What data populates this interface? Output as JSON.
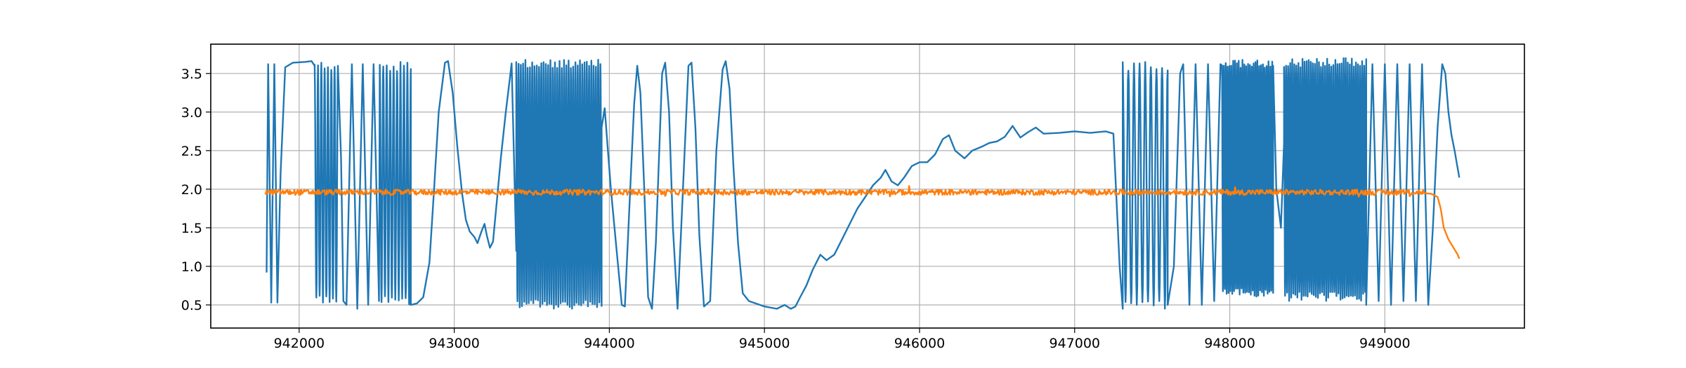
{
  "chart_data": {
    "type": "line",
    "title": "",
    "xlabel": "",
    "ylabel": "",
    "xlim": [
      941430,
      949900
    ],
    "ylim": [
      0.2,
      3.88
    ],
    "grid": true,
    "xticks": [
      942000,
      943000,
      944000,
      945000,
      946000,
      947000,
      948000,
      949000
    ],
    "xtick_labels": [
      "942000",
      "943000",
      "944000",
      "945000",
      "946000",
      "947000",
      "948000",
      "949000"
    ],
    "yticks": [
      0.5,
      1.0,
      1.5,
      2.0,
      2.5,
      3.0,
      3.5
    ],
    "ytick_labels": [
      "0.5",
      "1.0",
      "1.5",
      "2.0",
      "2.5",
      "3.0",
      "3.5"
    ],
    "series": [
      {
        "color": "#1f77b4",
        "segments": [
          {
            "kind": "points",
            "pts": [
              [
                941790,
                0.92
              ],
              [
                941800,
                3.62
              ],
              [
                941820,
                0.53
              ],
              [
                941840,
                3.62
              ],
              [
                941860,
                0.53
              ],
              [
                941880,
                2.2
              ],
              [
                941910,
                3.58
              ],
              [
                941960,
                3.64
              ],
              [
                942040,
                3.65
              ],
              [
                942080,
                3.66
              ],
              [
                942100,
                3.6
              ]
            ]
          },
          {
            "kind": "osc",
            "x0": 942100,
            "x1": 942250,
            "n": 14,
            "lo": 0.5,
            "hi": 3.65
          },
          {
            "kind": "points",
            "pts": [
              [
                942250,
                3.6
              ],
              [
                942270,
                2.4
              ],
              [
                942285,
                0.55
              ],
              [
                942305,
                0.5
              ],
              [
                942340,
                3.62
              ],
              [
                942375,
                0.45
              ],
              [
                942410,
                3.62
              ],
              [
                942445,
                0.5
              ],
              [
                942480,
                3.62
              ],
              [
                942515,
                0.55
              ]
            ]
          },
          {
            "kind": "osc",
            "x0": 942520,
            "x1": 942720,
            "n": 18,
            "lo": 0.5,
            "hi": 3.65
          },
          {
            "kind": "points",
            "pts": [
              [
                942720,
                0.5
              ],
              [
                942760,
                0.52
              ],
              [
                942800,
                0.6
              ],
              [
                942840,
                1.05
              ],
              [
                942870,
                2.0
              ],
              [
                942900,
                3.0
              ],
              [
                942940,
                3.64
              ],
              [
                942960,
                3.66
              ],
              [
                942990,
                3.25
              ],
              [
                943020,
                2.55
              ],
              [
                943050,
                1.95
              ],
              [
                943075,
                1.6
              ],
              [
                943100,
                1.45
              ],
              [
                943130,
                1.38
              ],
              [
                943150,
                1.3
              ],
              [
                943175,
                1.45
              ],
              [
                943195,
                1.55
              ],
              [
                943210,
                1.4
              ],
              [
                943230,
                1.24
              ],
              [
                943250,
                1.32
              ],
              [
                943275,
                1.85
              ],
              [
                943300,
                2.4
              ],
              [
                943330,
                2.96
              ],
              [
                943370,
                3.63
              ],
              [
                943400,
                1.2
              ]
            ]
          },
          {
            "kind": "osc",
            "x0": 943400,
            "x1": 943950,
            "n": 75,
            "lo": 0.45,
            "hi": 3.68
          },
          {
            "kind": "points",
            "pts": [
              [
                943950,
                2.8
              ],
              [
                943970,
                3.05
              ],
              [
                943985,
                2.65
              ],
              [
                944010,
                2.0
              ],
              [
                944045,
                1.25
              ],
              [
                944080,
                0.5
              ],
              [
                944100,
                0.48
              ],
              [
                944130,
                1.8
              ],
              [
                944160,
                3.1
              ],
              [
                944180,
                3.6
              ],
              [
                944200,
                3.25
              ],
              [
                944225,
                2.0
              ],
              [
                944250,
                0.6
              ],
              [
                944275,
                0.45
              ],
              [
                944300,
                1.3
              ],
              [
                944340,
                3.5
              ],
              [
                944360,
                3.64
              ],
              [
                944385,
                3.0
              ],
              [
                944410,
                1.5
              ],
              [
                944440,
                0.45
              ],
              [
                944470,
                1.8
              ],
              [
                944510,
                3.6
              ],
              [
                944530,
                3.64
              ],
              [
                944555,
                2.8
              ],
              [
                944580,
                1.4
              ],
              [
                944610,
                0.48
              ],
              [
                944650,
                0.55
              ],
              [
                944690,
                2.5
              ],
              [
                944730,
                3.55
              ],
              [
                944750,
                3.66
              ],
              [
                944775,
                3.3
              ],
              [
                944800,
                2.3
              ],
              [
                944830,
                1.3
              ],
              [
                944860,
                0.65
              ],
              [
                944900,
                0.55
              ],
              [
                945000,
                0.48
              ],
              [
                945080,
                0.45
              ],
              [
                945130,
                0.5
              ],
              [
                945170,
                0.45
              ],
              [
                945200,
                0.48
              ],
              [
                945230,
                0.6
              ],
              [
                945270,
                0.75
              ],
              [
                945310,
                0.95
              ],
              [
                945360,
                1.15
              ],
              [
                945400,
                1.08
              ],
              [
                945450,
                1.15
              ],
              [
                945500,
                1.35
              ],
              [
                945550,
                1.55
              ],
              [
                945600,
                1.75
              ],
              [
                945650,
                1.9
              ],
              [
                945700,
                2.05
              ],
              [
                945750,
                2.15
              ],
              [
                945780,
                2.25
              ],
              [
                945820,
                2.1
              ],
              [
                945860,
                2.05
              ],
              [
                945900,
                2.15
              ],
              [
                945950,
                2.3
              ],
              [
                946000,
                2.35
              ],
              [
                946050,
                2.35
              ],
              [
                946100,
                2.45
              ],
              [
                946150,
                2.65
              ],
              [
                946190,
                2.7
              ],
              [
                946230,
                2.5
              ],
              [
                946290,
                2.4
              ],
              [
                946340,
                2.5
              ],
              [
                946400,
                2.55
              ],
              [
                946450,
                2.6
              ],
              [
                946500,
                2.62
              ],
              [
                946550,
                2.68
              ],
              [
                946600,
                2.82
              ],
              [
                946650,
                2.67
              ],
              [
                946700,
                2.74
              ],
              [
                946750,
                2.8
              ],
              [
                946800,
                2.72
              ],
              [
                946900,
                2.73
              ],
              [
                947000,
                2.75
              ],
              [
                947100,
                2.73
              ],
              [
                947200,
                2.75
              ],
              [
                947250,
                2.72
              ],
              [
                947290,
                1.0
              ],
              [
                947310,
                0.45
              ]
            ]
          },
          {
            "kind": "osc",
            "x0": 947310,
            "x1": 947600,
            "n": 16,
            "lo": 0.45,
            "hi": 3.65
          },
          {
            "kind": "points",
            "pts": [
              [
                947600,
                0.5
              ],
              [
                947640,
                1.0
              ],
              [
                947680,
                3.5
              ],
              [
                947700,
                3.62
              ],
              [
                947740,
                0.5
              ],
              [
                947780,
                3.62
              ],
              [
                947820,
                0.5
              ],
              [
                947860,
                3.62
              ],
              [
                947900,
                0.55
              ],
              [
                947940,
                3.62
              ]
            ]
          },
          {
            "kind": "osc",
            "x0": 947950,
            "x1": 948280,
            "n": 55,
            "lo": 0.6,
            "hi": 3.68
          },
          {
            "kind": "points",
            "pts": [
              [
                948280,
                3.6
              ],
              [
                948300,
                2.0
              ],
              [
                948330,
                1.5
              ],
              [
                948350,
                2.6
              ]
            ]
          },
          {
            "kind": "osc",
            "x0": 948350,
            "x1": 948880,
            "n": 80,
            "lo": 0.55,
            "hi": 3.7
          },
          {
            "kind": "points",
            "pts": [
              [
                948880,
                0.5
              ],
              [
                948920,
                3.62
              ],
              [
                948960,
                0.55
              ],
              [
                949000,
                3.62
              ],
              [
                949040,
                0.5
              ],
              [
                949080,
                3.62
              ],
              [
                949120,
                0.55
              ],
              [
                949160,
                3.62
              ],
              [
                949200,
                0.55
              ],
              [
                949240,
                3.62
              ],
              [
                949280,
                0.5
              ],
              [
                949310,
                1.5
              ],
              [
                949340,
                2.8
              ],
              [
                949370,
                3.62
              ],
              [
                949390,
                3.5
              ],
              [
                949410,
                3.0
              ],
              [
                949430,
                2.7
              ],
              [
                949450,
                2.5
              ],
              [
                949480,
                2.15
              ]
            ]
          }
        ]
      },
      {
        "color": "#ff7f0e",
        "segments": [
          {
            "kind": "noise",
            "x0": 941780,
            "x1": 949250,
            "n": 1500,
            "base": 1.96,
            "amp": 0.035
          },
          {
            "kind": "points",
            "pts": [
              [
                949250,
                1.95
              ],
              [
                949300,
                1.94
              ],
              [
                949340,
                1.9
              ],
              [
                949360,
                1.75
              ],
              [
                949380,
                1.5
              ],
              [
                949410,
                1.35
              ],
              [
                949440,
                1.25
              ],
              [
                949470,
                1.15
              ],
              [
                949480,
                1.1
              ]
            ]
          }
        ]
      }
    ]
  }
}
